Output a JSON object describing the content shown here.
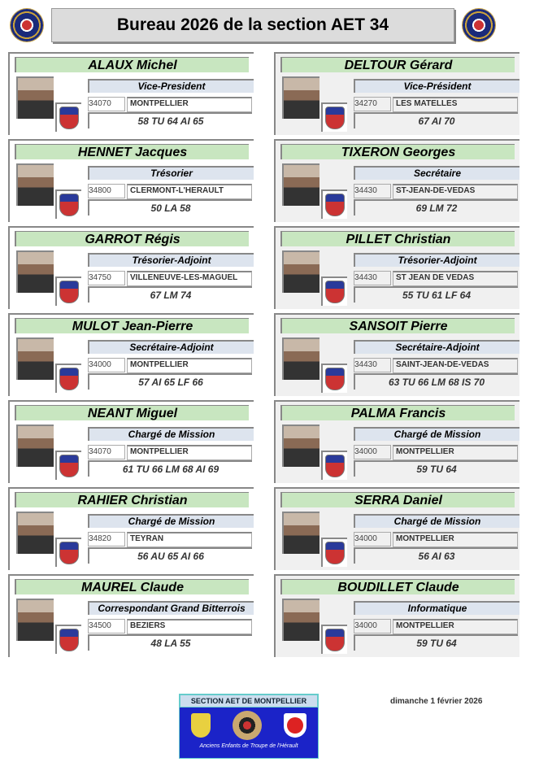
{
  "header": {
    "title": "Bureau 2026 de la section AET 34"
  },
  "members": [
    {
      "name": "ALAUX Michel",
      "role": "Vice-President",
      "zip": "34070",
      "city": "MONTPELLIER",
      "period": "58 TU 64 AI 65"
    },
    {
      "name": "DELTOUR Gérard",
      "role": "Vice-Président",
      "zip": "34270",
      "city": "LES MATELLES",
      "period": "67 AI 70"
    },
    {
      "name": "HENNET Jacques",
      "role": "Trésorier",
      "zip": "34800",
      "city": "CLERMONT-L'HERAULT",
      "period": "50 LA 58"
    },
    {
      "name": "TIXERON Georges",
      "role": "Secrétaire",
      "zip": "34430",
      "city": "ST-JEAN-DE-VEDAS",
      "period": "69 LM 72"
    },
    {
      "name": "GARROT Régis",
      "role": "Trésorier-Adjoint",
      "zip": "34750",
      "city": "VILLENEUVE-LES-MAGUEL",
      "period": "67 LM 74"
    },
    {
      "name": "PILLET Christian",
      "role": "Trésorier-Adjoint",
      "zip": "34430",
      "city": "ST JEAN DE VEDAS",
      "period": "55 TU 61 LF 64"
    },
    {
      "name": "MULOT Jean-Pierre",
      "role": "Secrétaire-Adjoint",
      "zip": "34000",
      "city": "MONTPELLIER",
      "period": "57 AI 65 LF 66"
    },
    {
      "name": "SANSOIT Pierre",
      "role": "Secrétaire-Adjoint",
      "zip": "34430",
      "city": "SAINT-JEAN-DE-VEDAS",
      "period": "63 TU 66 LM 68 IS 70"
    },
    {
      "name": "NEANT Miguel",
      "role": "Chargé de Mission",
      "zip": "34070",
      "city": "MONTPELLIER",
      "period": "61 TU 66 LM 68 AI 69"
    },
    {
      "name": "PALMA Francis",
      "role": "Chargé de Mission",
      "zip": "34000",
      "city": "MONTPELLIER",
      "period": "59 TU 64"
    },
    {
      "name": "RAHIER Christian",
      "role": "Chargé de Mission",
      "zip": "34820",
      "city": "TEYRAN",
      "period": "56 AU 65 AI 66"
    },
    {
      "name": "SERRA Daniel",
      "role": "Chargé de Mission",
      "zip": "34000",
      "city": "MONTPELLIER",
      "period": "56 AI 63"
    },
    {
      "name": "MAUREL Claude",
      "role": "Correspondant Grand Bitterrois",
      "zip": "34500",
      "city": "BEZIERS",
      "period": "48 LA 55"
    },
    {
      "name": "BOUDILLET Claude",
      "role": "Informatique",
      "zip": "34000",
      "city": "MONTPELLIER",
      "period": "59 TU 64"
    }
  ],
  "footer": {
    "banner": "SECTION AET DE MONTPELLIER",
    "tagline": "Anciens Enfants de Troupe de l'Hérault",
    "date": "dimanche 1 février 2026"
  }
}
